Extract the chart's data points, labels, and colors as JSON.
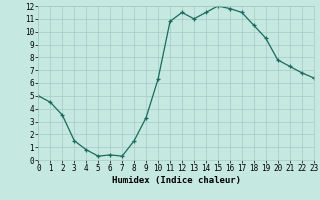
{
  "x": [
    0,
    1,
    2,
    3,
    4,
    5,
    6,
    7,
    8,
    9,
    10,
    11,
    12,
    13,
    14,
    15,
    16,
    17,
    18,
    19,
    20,
    21,
    22,
    23
  ],
  "y": [
    5.0,
    4.5,
    3.5,
    1.5,
    0.8,
    0.3,
    0.4,
    0.3,
    1.5,
    3.3,
    6.3,
    10.8,
    11.5,
    11.0,
    11.5,
    12.0,
    11.8,
    11.5,
    10.5,
    9.5,
    7.8,
    7.3,
    6.8,
    6.4
  ],
  "line_color": "#1a6b5e",
  "marker": "+",
  "bg_color": "#c5e8e0",
  "grid_color": "#a8ccc5",
  "xlabel": "Humidex (Indice chaleur)",
  "ylim": [
    0,
    12
  ],
  "xlim": [
    0,
    23
  ],
  "xticks": [
    0,
    1,
    2,
    3,
    4,
    5,
    6,
    7,
    8,
    9,
    10,
    11,
    12,
    13,
    14,
    15,
    16,
    17,
    18,
    19,
    20,
    21,
    22,
    23
  ],
  "yticks": [
    0,
    1,
    2,
    3,
    4,
    5,
    6,
    7,
    8,
    9,
    10,
    11,
    12
  ],
  "tick_fontsize": 5.5,
  "label_fontsize": 6.5
}
